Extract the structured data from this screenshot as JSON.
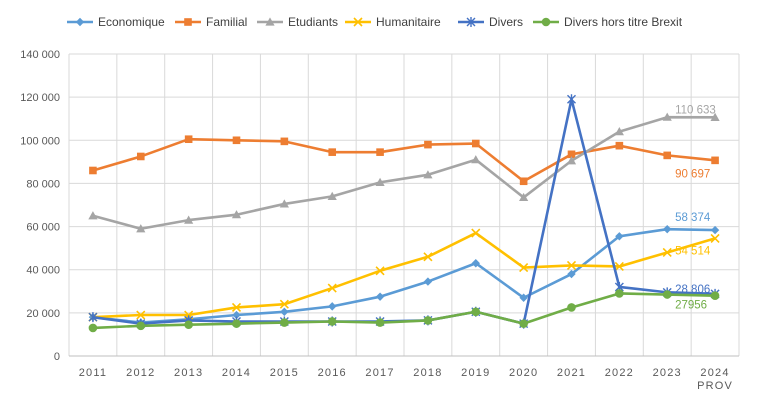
{
  "chart_data": {
    "type": "line",
    "categories": [
      "2011",
      "2012",
      "2013",
      "2014",
      "2015",
      "2016",
      "2017",
      "2018",
      "2019",
      "2020",
      "2021",
      "2022",
      "2023",
      "2024"
    ],
    "last_category_suffix": "PROV",
    "ylim": [
      0,
      140000
    ],
    "yticks": [
      0,
      20000,
      40000,
      60000,
      80000,
      100000,
      120000,
      140000
    ],
    "ytick_labels": [
      "0",
      "20 000",
      "40 000",
      "60 000",
      "80 000",
      "100 000",
      "120 000",
      "140 000"
    ],
    "grid": true,
    "legend_position": "top",
    "series": [
      {
        "name": "Economique",
        "color": "#5B9BD5",
        "marker": "diamond",
        "values": [
          18000,
          15500,
          17000,
          19000,
          20500,
          23000,
          27500,
          34500,
          43000,
          27000,
          38000,
          55500,
          58800,
          58374
        ],
        "end_label": "58 374"
      },
      {
        "name": "Familial",
        "color": "#ED7D31",
        "marker": "square",
        "values": [
          86000,
          92500,
          100500,
          100000,
          99500,
          94500,
          94500,
          98000,
          98500,
          81000,
          93500,
          97500,
          93000,
          90697
        ],
        "end_label": "90 697"
      },
      {
        "name": "Etudiants",
        "color": "#A5A5A5",
        "marker": "triangle",
        "values": [
          65000,
          59000,
          63000,
          65500,
          70500,
          74000,
          80500,
          84000,
          91000,
          73500,
          90500,
          104000,
          110700,
          110633
        ],
        "end_label": "110 633"
      },
      {
        "name": "Humanitaire",
        "color": "#FFC000",
        "marker": "x",
        "values": [
          18000,
          19000,
          19000,
          22500,
          24000,
          31500,
          39500,
          46000,
          57000,
          41000,
          42000,
          41500,
          48000,
          54514
        ],
        "end_label": "54 514"
      },
      {
        "name": "Divers",
        "color": "#4472C4",
        "marker": "star",
        "values": [
          18000,
          15000,
          16500,
          16000,
          16000,
          16000,
          16000,
          16500,
          20500,
          15000,
          119000,
          32000,
          29500,
          28806
        ],
        "end_label": "28 806"
      },
      {
        "name": "Divers hors titre Brexit",
        "color": "#70AD47",
        "marker": "circle",
        "values": [
          13000,
          14000,
          14500,
          15000,
          15500,
          16000,
          15500,
          16500,
          20500,
          15000,
          22500,
          29000,
          28500,
          27956
        ],
        "end_label": "27956"
      }
    ]
  }
}
